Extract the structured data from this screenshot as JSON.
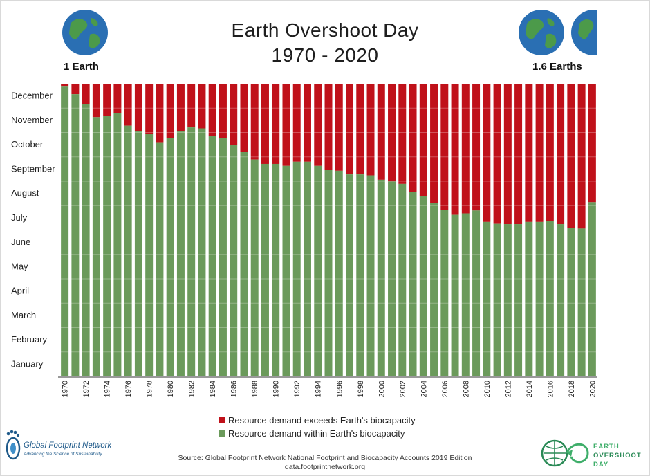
{
  "title_line1": "Earth Overshoot Day",
  "title_line2": "1970 - 2020",
  "left_label": "1 Earth",
  "right_label": "1.6 Earths",
  "colors": {
    "overshoot": "#c0111a",
    "within": "#6b9a5b",
    "logo_blue": "#1f5a8a",
    "logo_green": "#3fae6a"
  },
  "legend": {
    "overshoot": "Resource demand exceeds Earth's biocapacity",
    "within": "Resource demand within Earth's biocapacity"
  },
  "source_line1": "Source: Global Footprint Network National Footprint and Biocapacity Accounts 2019 Edition",
  "source_line2": "data.footprintnetwork.org",
  "logo_left": {
    "name": "Global Footprint Network",
    "tagline": "Advancing the Science of Sustainability"
  },
  "logo_right": {
    "line1": "EARTH",
    "line2": "OVERSHOOT",
    "line3": "DAY"
  },
  "icons": [
    "globe-icon",
    "footprint-icon",
    "overshoot-arrow-icon"
  ],
  "chart_data": {
    "type": "bar",
    "stacked": true,
    "y_categories": [
      "January",
      "February",
      "March",
      "April",
      "May",
      "June",
      "July",
      "August",
      "September",
      "October",
      "November",
      "December"
    ],
    "ylim_months": [
      0,
      12
    ],
    "x_tick_labels": [
      "1970",
      "1972",
      "1974",
      "1976",
      "1978",
      "1980",
      "1982",
      "1984",
      "1986",
      "1988",
      "1990",
      "1992",
      "1994",
      "1996",
      "1998",
      "2000",
      "2002",
      "2004",
      "2006",
      "2008",
      "2010",
      "2012",
      "2014",
      "2016",
      "2018",
      "2020"
    ],
    "years": [
      1970,
      1971,
      1972,
      1973,
      1974,
      1975,
      1976,
      1977,
      1978,
      1979,
      1980,
      1981,
      1982,
      1983,
      1984,
      1985,
      1986,
      1987,
      1988,
      1989,
      1990,
      1991,
      1992,
      1993,
      1994,
      1995,
      1996,
      1997,
      1998,
      1999,
      2000,
      2001,
      2002,
      2003,
      2004,
      2005,
      2006,
      2007,
      2008,
      2009,
      2010,
      2011,
      2012,
      2013,
      2014,
      2015,
      2016,
      2017,
      2018,
      2019,
      2020
    ],
    "overshoot_month_position": [
      11.88,
      11.57,
      11.17,
      10.63,
      10.68,
      10.8,
      10.28,
      10.04,
      9.94,
      9.6,
      9.76,
      10.04,
      10.21,
      10.17,
      9.86,
      9.76,
      9.48,
      9.22,
      8.89,
      8.71,
      8.71,
      8.63,
      8.8,
      8.8,
      8.63,
      8.46,
      8.43,
      8.28,
      8.28,
      8.24,
      8.06,
      7.99,
      7.89,
      7.55,
      7.39,
      7.12,
      6.83,
      6.62,
      6.68,
      6.8,
      6.33,
      6.25,
      6.24,
      6.24,
      6.33,
      6.33,
      6.38,
      6.24,
      6.09,
      6.06,
      7.14
    ],
    "series": [
      {
        "name": "Resource demand within Earth's biocapacity",
        "role": "within"
      },
      {
        "name": "Resource demand exceeds Earth's biocapacity",
        "role": "overshoot"
      }
    ],
    "grid": true,
    "legend_position": "bottom-center"
  }
}
